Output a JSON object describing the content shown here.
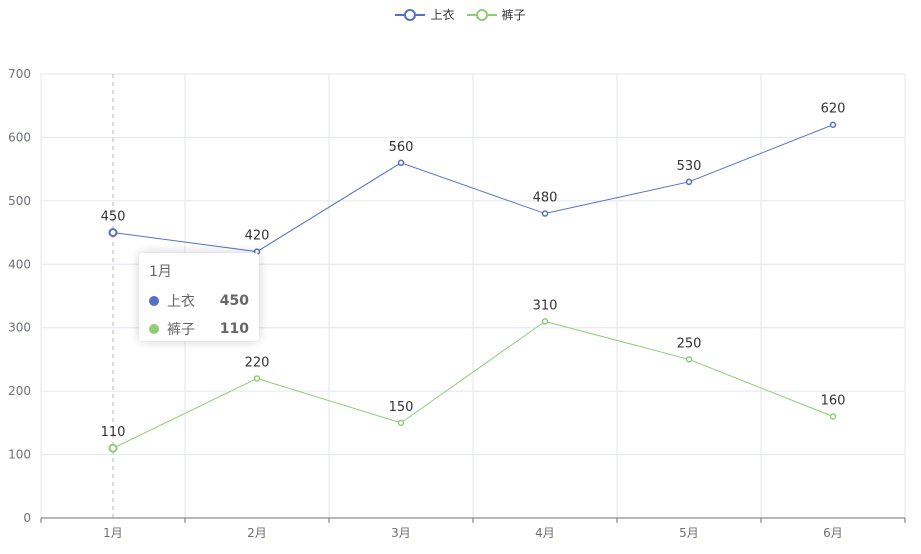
{
  "chart_data": {
    "type": "line",
    "title": "",
    "xlabel": "",
    "ylabel": "",
    "categories": [
      "1月",
      "2月",
      "3月",
      "4月",
      "5月",
      "6月"
    ],
    "series": [
      {
        "name": "上衣",
        "color": "#5470c6",
        "values": [
          450,
          420,
          560,
          480,
          530,
          620
        ]
      },
      {
        "name": "裤子",
        "color": "#91cc75",
        "values": [
          110,
          220,
          150,
          310,
          250,
          160
        ]
      }
    ],
    "ylim": [
      0,
      700
    ],
    "yticks": [
      0,
      100,
      200,
      300,
      400,
      500,
      600,
      700
    ],
    "grid": true,
    "legend_position": "top-center",
    "data_labels": true
  },
  "legend": {
    "items": [
      {
        "label": "上衣",
        "color": "#5470c6"
      },
      {
        "label": "裤子",
        "color": "#91cc75"
      }
    ]
  },
  "tooltip": {
    "title": "1月",
    "rows": [
      {
        "name": "上衣",
        "value": "450",
        "color": "#5470c6"
      },
      {
        "name": "裤子",
        "value": "110",
        "color": "#91cc75"
      }
    ]
  }
}
